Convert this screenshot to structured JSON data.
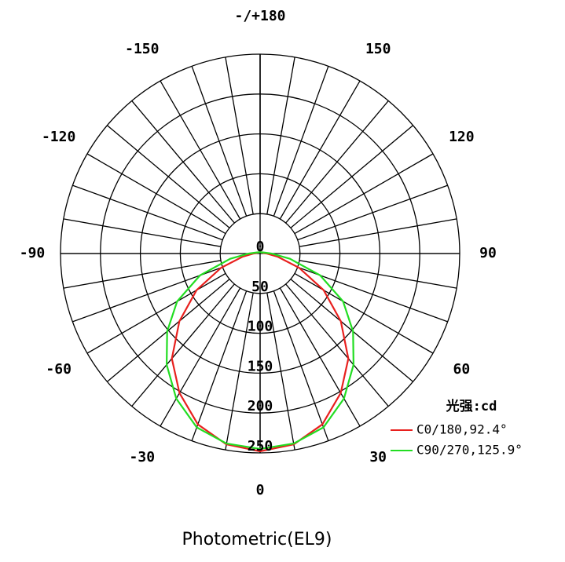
{
  "chart_data": {
    "type": "polar",
    "title": "Photometric(EL9)",
    "legend_title": "光强:cd",
    "angles": [
      -180,
      -170,
      -160,
      -150,
      -140,
      -130,
      -120,
      -110,
      -100,
      -90,
      -80,
      -70,
      -60,
      -50,
      -40,
      -30,
      -20,
      -10,
      0,
      10,
      20,
      30,
      40,
      50,
      60,
      70,
      80,
      90,
      100,
      110,
      120,
      130,
      140,
      150,
      160,
      170,
      180
    ],
    "series": [
      {
        "name": "C0/180,92.4°",
        "color": "#e8201e",
        "values": [
          2,
          2,
          2,
          2,
          2,
          2,
          3,
          4,
          4,
          8,
          22,
          52,
          92,
          132,
          172,
          202,
          228,
          243,
          248,
          243,
          228,
          202,
          172,
          132,
          92,
          52,
          22,
          8,
          4,
          4,
          3,
          2,
          2,
          2,
          2,
          2,
          2
        ]
      },
      {
        "name": "C90/270,125.9°",
        "color": "#22dd22",
        "values": [
          2,
          2,
          2,
          2,
          2,
          2,
          3,
          4,
          6,
          14,
          38,
          80,
          120,
          152,
          182,
          210,
          232,
          242,
          245,
          242,
          232,
          210,
          182,
          152,
          120,
          80,
          38,
          14,
          6,
          4,
          3,
          2,
          2,
          2,
          2,
          2,
          2
        ]
      }
    ],
    "rlim": [
      0,
      250
    ],
    "rticks": [
      0,
      50,
      100,
      150,
      200,
      250
    ],
    "angle_ticks": [
      0,
      30,
      60,
      90,
      120,
      150,
      {
        "value": 180,
        "label": "-/+180"
      },
      -150,
      -120,
      -90,
      -60,
      -30
    ]
  }
}
